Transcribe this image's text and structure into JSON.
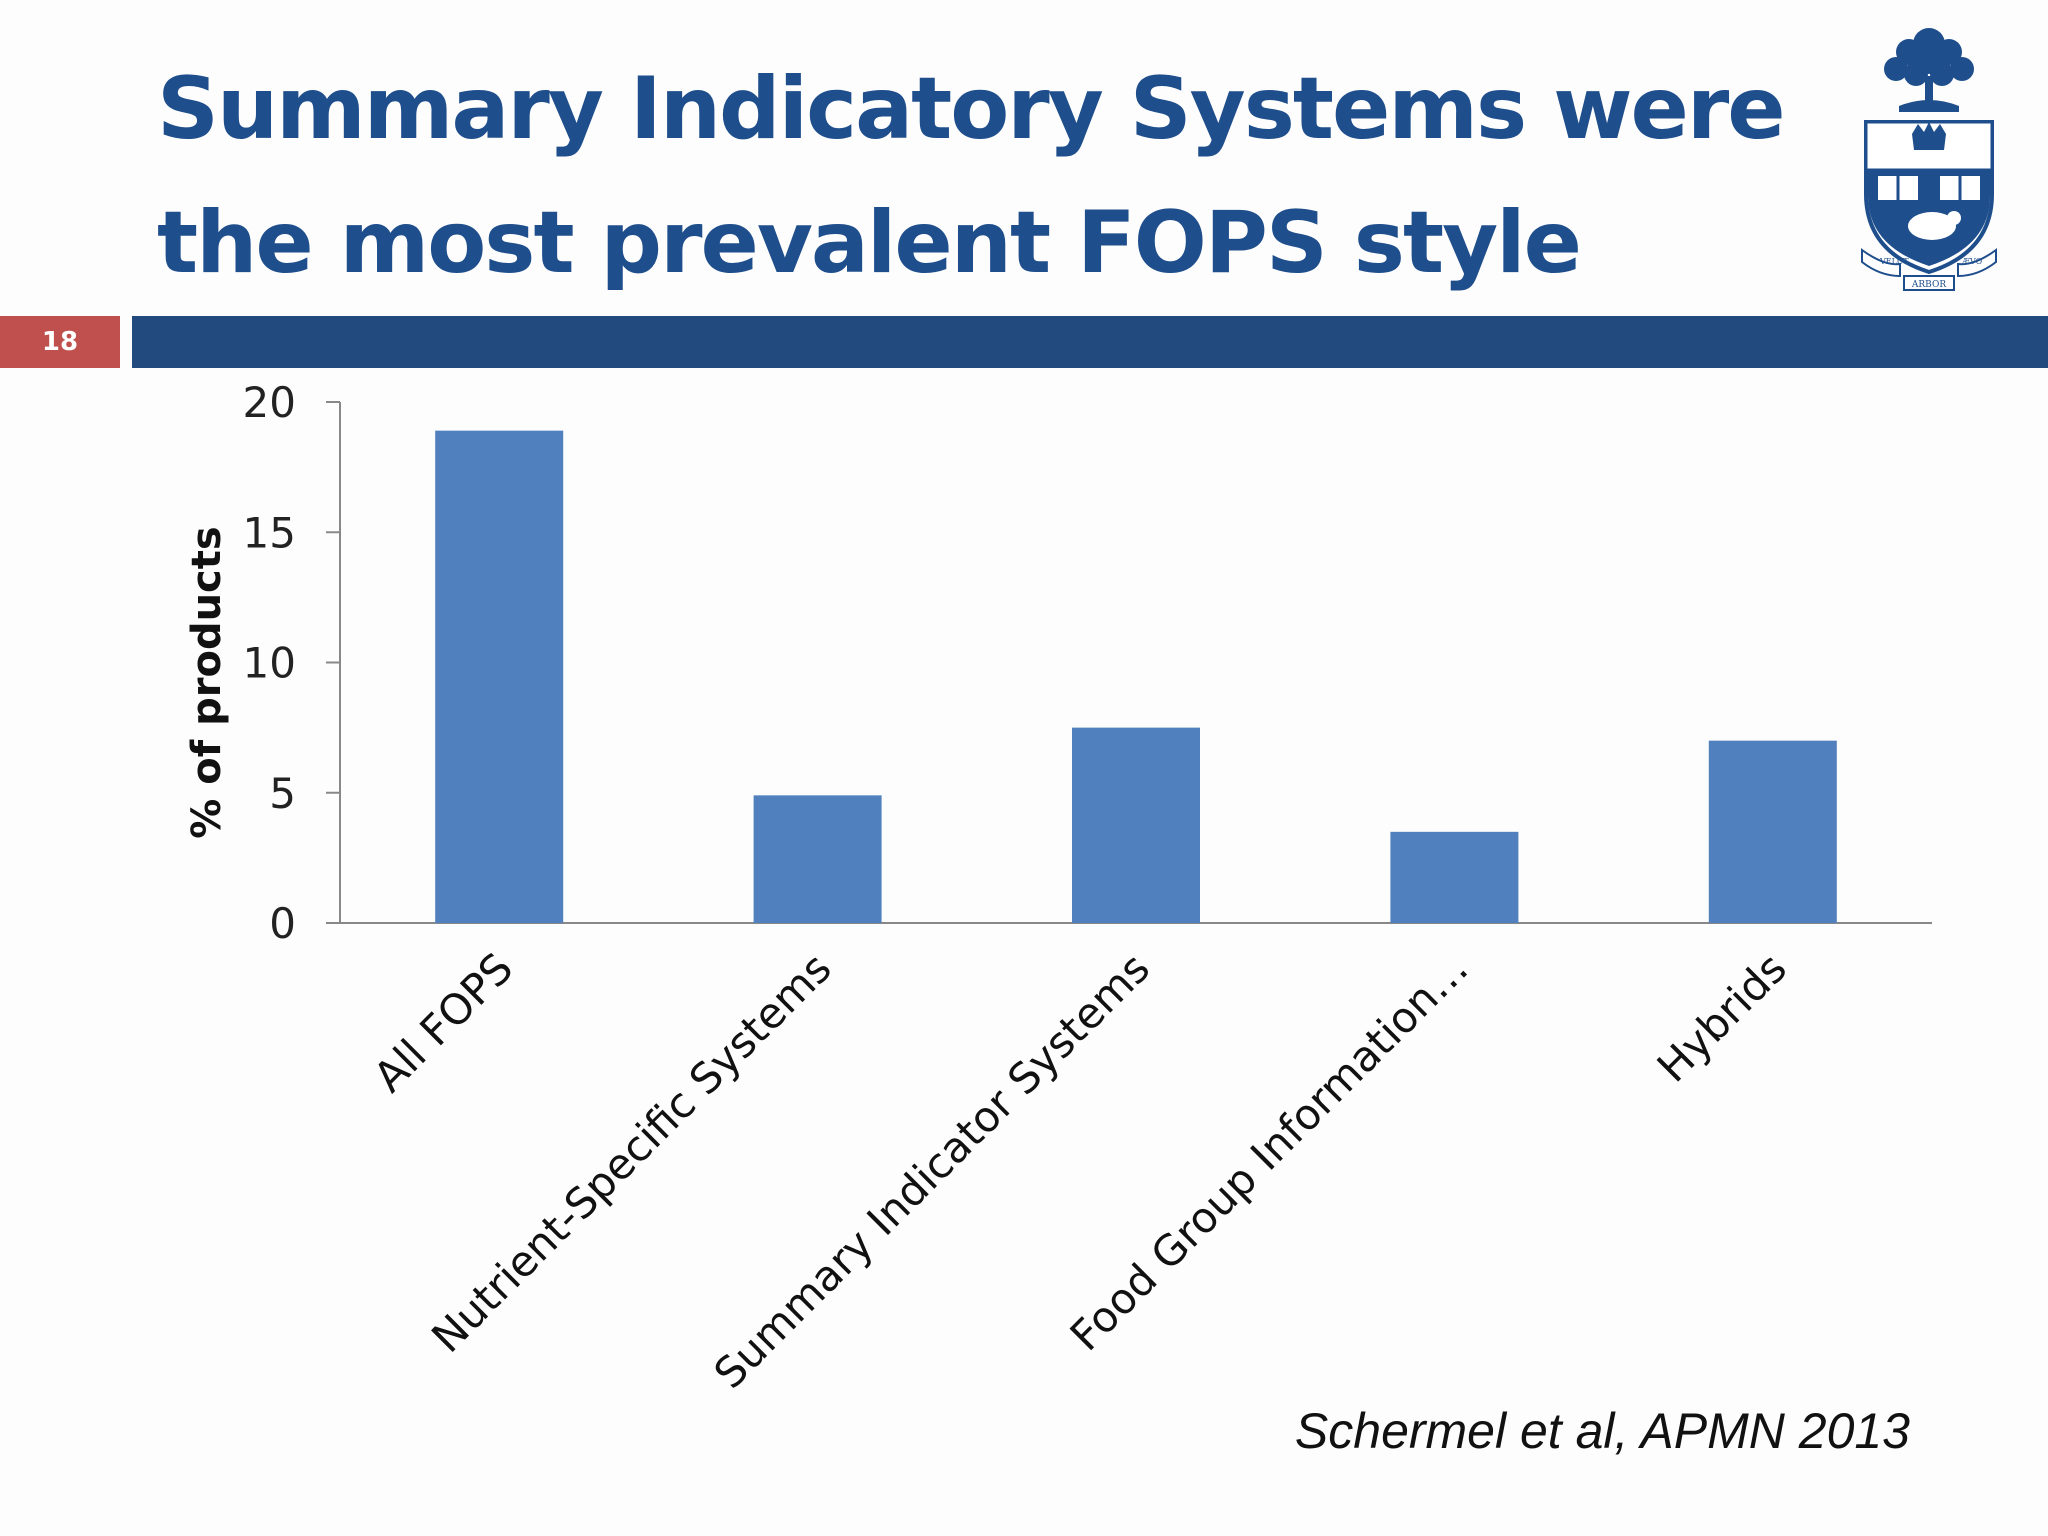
{
  "slide": {
    "title_lines": [
      "Summary Indicatory Systems were",
      "the most prevalent FOPS style"
    ],
    "slide_number": "18",
    "citation": "Schermel et al, APMN 2013",
    "crest_motto": {
      "left": "VELUT",
      "right": "ÆVO",
      "bottom": "ARBOR"
    }
  },
  "colors": {
    "title": "#1f4e8c",
    "band": "#234a7e",
    "number_badge": "#c0504d",
    "bars": "#5080be"
  },
  "chart_data": {
    "type": "bar",
    "title": "",
    "xlabel": "",
    "ylabel": "% of products",
    "categories": [
      "All FOPS",
      "Nutrient-Specific Systems",
      "Summary Indicator Systems",
      "Food Group Information…",
      "Hybrids"
    ],
    "values": [
      18.9,
      4.9,
      7.5,
      3.5,
      7.0
    ],
    "ylim": [
      0,
      20
    ],
    "yticks": [
      0,
      5,
      10,
      15,
      20
    ],
    "grid": false,
    "legend": "none"
  }
}
